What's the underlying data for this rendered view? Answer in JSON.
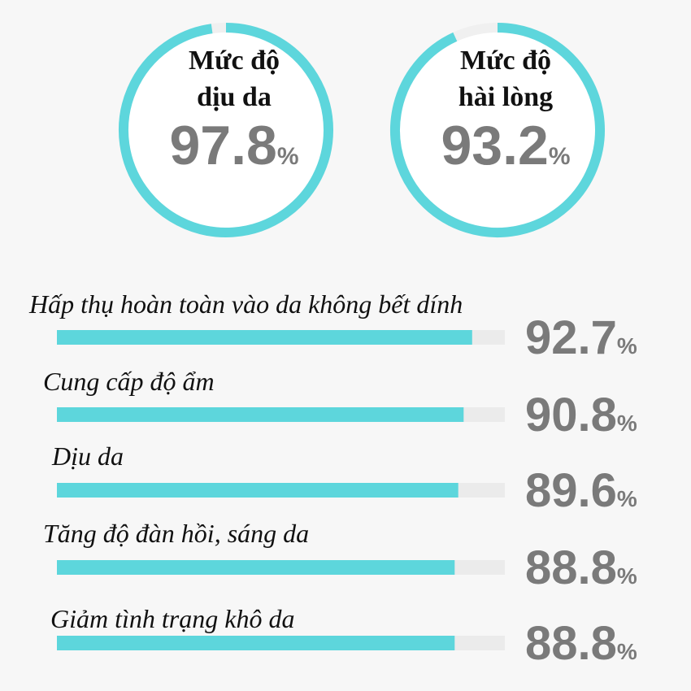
{
  "chart_data": [
    {
      "type": "gauge",
      "title": [
        "Mức độ",
        "dịu da"
      ],
      "value": 97.8,
      "unit": "%",
      "color": "#5dd6dc",
      "ylim": [
        0,
        100
      ]
    },
    {
      "type": "gauge",
      "title": [
        "Mức độ",
        "hài lòng"
      ],
      "value": 93.2,
      "unit": "%",
      "color": "#5dd6dc",
      "ylim": [
        0,
        100
      ]
    },
    {
      "type": "bar",
      "orientation": "horizontal",
      "categories": [
        "Hấp thụ hoàn toàn vào da không bết dính",
        "Cung cấp độ ẩm",
        "Dịu da",
        "Tăng độ đàn hồi, sáng da",
        "Giảm tình trạng khô da"
      ],
      "values": [
        92.7,
        90.8,
        89.6,
        88.8,
        88.8
      ],
      "unit": "%",
      "color": "#5dd6dc",
      "ylim": [
        0,
        100
      ]
    }
  ]
}
